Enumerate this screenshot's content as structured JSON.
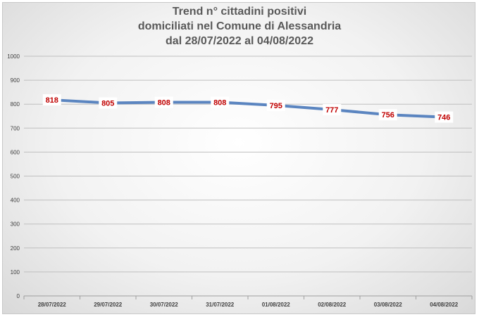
{
  "chart_data": {
    "type": "line",
    "title_lines": [
      "Trend n° cittadini positivi",
      "domiciliati nel Comune di Alessandria",
      "dal 28/07/2022 al 04/08/2022"
    ],
    "categories": [
      "28/07/2022",
      "29/07/2022",
      "30/07/2022",
      "31/07/2022",
      "01/08/2022",
      "02/08/2022",
      "03/08/2022",
      "04/08/2022"
    ],
    "values": [
      818,
      805,
      808,
      808,
      795,
      777,
      756,
      746
    ],
    "ylim": [
      0,
      1000
    ],
    "yticks": [
      0,
      100,
      200,
      300,
      400,
      500,
      600,
      700,
      800,
      900,
      1000
    ],
    "grid": true,
    "colors": {
      "line": "#5b85c0",
      "label_text": "#c00000",
      "label_bg": "#ffffff"
    }
  }
}
